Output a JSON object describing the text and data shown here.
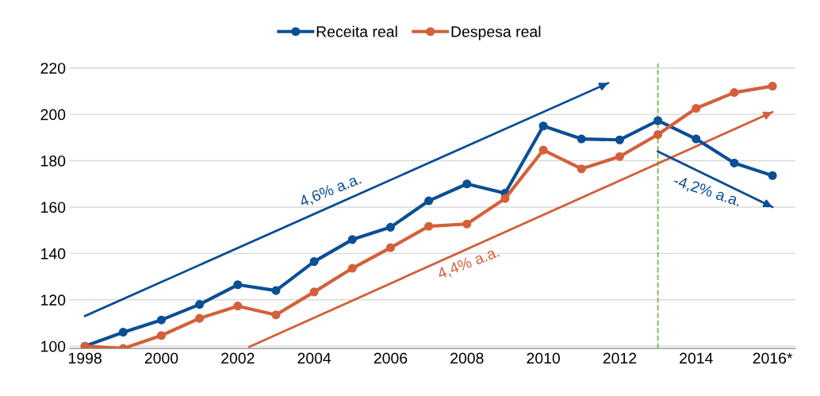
{
  "chart_data": {
    "type": "line",
    "x": [
      1998,
      1999,
      2000,
      2001,
      2002,
      2003,
      2004,
      2005,
      2006,
      2007,
      2008,
      2009,
      2010,
      2011,
      2012,
      2013,
      2014,
      2015,
      2016
    ],
    "series": [
      {
        "name": "Receita real",
        "color": "#0b4f94",
        "marker": "circle",
        "values": [
          100,
          106,
          111.3,
          118,
          126.5,
          124,
          136.5,
          146,
          151.3,
          162.7,
          170,
          166,
          195,
          189.4,
          189,
          197.3,
          189.4,
          179,
          173.6
        ]
      },
      {
        "name": "Despesa real",
        "color": "#d3603a",
        "marker": "circle",
        "values": [
          100,
          99,
          104.6,
          112,
          117.3,
          113.5,
          123.4,
          133.6,
          142.5,
          151.7,
          152.7,
          163.7,
          184.6,
          176.5,
          181.8,
          191.3,
          202.6,
          209.4,
          212.2
        ]
      },
      {
        "type": "line",
        "color": "#0b4f94",
        "marker": "none",
        "x": [
          1998,
          2011.7
        ],
        "values": [
          113,
          213.5
        ]
      },
      {
        "type": "line",
        "color": "#d3603a",
        "marker": "none",
        "x": [
          2002.3,
          2016
        ],
        "values": [
          99.7,
          201
        ]
      },
      {
        "type": "line",
        "color": "#0b4f94",
        "marker": "none",
        "x": [
          2013,
          2016
        ],
        "values": [
          184,
          160
        ]
      }
    ],
    "xlim": [
      1997.6,
      2016.6
    ],
    "xticks": [
      1998,
      2000,
      2002,
      2004,
      2006,
      2008,
      2010,
      2012,
      2014,
      {
        "value": 2016,
        "label": "2016*"
      }
    ],
    "ylim": [
      99,
      222
    ],
    "yticks": [
      100,
      120,
      140,
      160,
      180,
      200,
      220
    ],
    "grid": "y",
    "legend": "top",
    "ref_lines": [
      {
        "axis": "x",
        "value": 2013,
        "label": null,
        "color": "#7ab648",
        "line_style": "dashed"
      }
    ],
    "annotations": [
      "4,6% a.a.",
      "4,4% a.a.",
      "-4,2% a.a."
    ]
  }
}
